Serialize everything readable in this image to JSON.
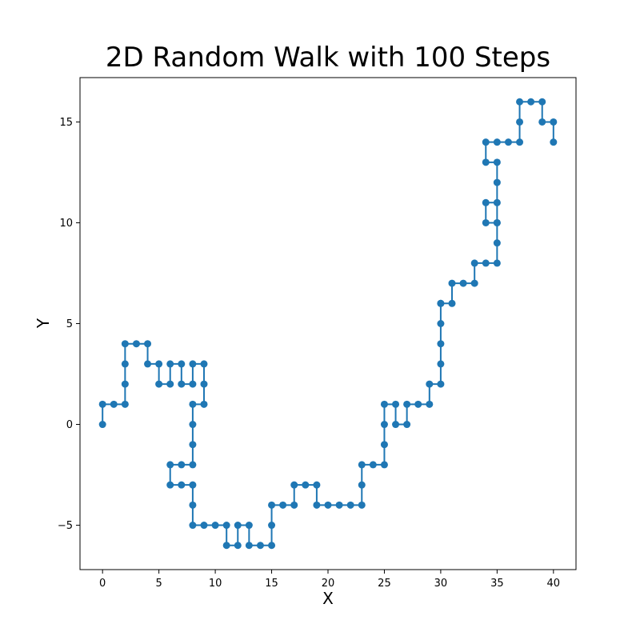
{
  "chart_data": {
    "type": "line",
    "title": "2D Random Walk with 100 Steps",
    "xlabel": "X",
    "ylabel": "Y",
    "xlim": [
      -2,
      42
    ],
    "ylim": [
      -7.2,
      17.2
    ],
    "x_ticks": [
      0,
      5,
      10,
      15,
      20,
      25,
      30,
      35,
      40
    ],
    "y_ticks": [
      -5,
      0,
      5,
      10,
      15
    ],
    "x_tick_labels": [
      "0",
      "5",
      "10",
      "15",
      "20",
      "25",
      "30",
      "35",
      "40"
    ],
    "y_tick_labels": [
      "−5",
      "0",
      "5",
      "10",
      "15"
    ],
    "grid": false,
    "marker": "circle",
    "color": "#1f77b4",
    "series": [
      {
        "x": [
          0,
          0,
          1,
          2,
          2,
          2,
          2,
          3,
          4,
          4,
          5,
          5,
          6,
          6,
          7,
          7,
          8,
          8,
          9,
          9,
          9,
          8,
          8,
          8,
          8,
          7,
          6,
          6,
          7,
          8,
          8,
          8,
          9,
          10,
          11,
          11,
          12,
          12,
          13,
          13,
          14,
          15,
          15,
          15,
          16,
          17,
          17,
          18,
          19,
          19,
          20,
          21,
          22,
          23,
          23,
          23,
          24,
          25,
          25,
          25,
          25,
          26,
          26,
          27,
          27,
          28,
          29,
          29,
          30,
          30,
          30,
          30,
          30,
          30,
          31,
          31,
          32,
          33,
          33,
          34,
          35,
          35,
          35,
          35,
          34,
          34,
          35,
          35,
          35,
          34,
          34,
          35,
          36,
          37,
          37,
          37,
          38,
          39,
          39,
          40,
          40
        ],
        "y": [
          0,
          1,
          1,
          1,
          2,
          3,
          4,
          4,
          4,
          3,
          3,
          2,
          2,
          3,
          3,
          2,
          2,
          3,
          3,
          2,
          1,
          1,
          0,
          -1,
          -2,
          -2,
          -2,
          -3,
          -3,
          -3,
          -4,
          -5,
          -5,
          -5,
          -5,
          -6,
          -6,
          -5,
          -5,
          -6,
          -6,
          -6,
          -5,
          -4,
          -4,
          -4,
          -3,
          -3,
          -3,
          -4,
          -4,
          -4,
          -4,
          -4,
          -3,
          -2,
          -2,
          -2,
          -1,
          0,
          1,
          1,
          0,
          0,
          1,
          1,
          1,
          2,
          2,
          3,
          4,
          5,
          6,
          6,
          6,
          7,
          7,
          7,
          8,
          8,
          8,
          9,
          10,
          11,
          11,
          10,
          10,
          12,
          13,
          13,
          14,
          14,
          14,
          14,
          15,
          16,
          16,
          16,
          15,
          15,
          14
        ]
      }
    ]
  }
}
